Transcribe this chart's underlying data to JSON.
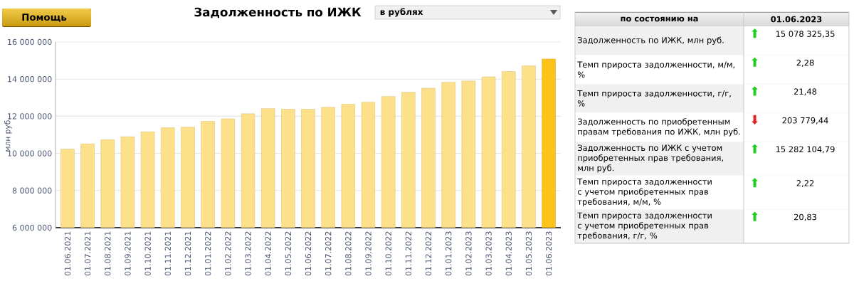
{
  "chart_data": [
    {
      "type": "bar",
      "title": "Задолженность по ИЖК",
      "ylabel": "млн руб.",
      "annotations": [
        "Помощь",
        "в рублях"
      ],
      "categories": [
        "01.06.2021",
        "01.07.2021",
        "01.08.2021",
        "01.09.2021",
        "01.10.2021",
        "01.11.2021",
        "01.12.2021",
        "01.01.2022",
        "01.02.2022",
        "01.03.2022",
        "01.04.2022",
        "01.05.2022",
        "01.06.2022",
        "01.07.2022",
        "01.08.2022",
        "01.09.2022",
        "01.10.2022",
        "01.11.2022",
        "01.12.2022",
        "01.01.2023",
        "01.02.2023",
        "01.03.2023",
        "01.04.2023",
        "01.05.2023",
        "01.06.2023"
      ],
      "values": [
        10230000,
        10510000,
        10740000,
        10900000,
        11170000,
        11380000,
        11410000,
        11730000,
        11860000,
        12140000,
        12410000,
        12380000,
        12380000,
        12480000,
        12650000,
        12760000,
        13070000,
        13290000,
        13510000,
        13830000,
        13900000,
        14120000,
        14410000,
        14720000,
        15080000
      ],
      "colors": [
        "#fde08a",
        "#fde08a",
        "#fde08a",
        "#fde08a",
        "#fde08a",
        "#fde08a",
        "#fde08a",
        "#fde08a",
        "#fde08a",
        "#fde08a",
        "#fde08a",
        "#fde08a",
        "#fde08a",
        "#fde08a",
        "#fde08a",
        "#fde08a",
        "#fde08a",
        "#fde08a",
        "#fde08a",
        "#fde08a",
        "#fde08a",
        "#fde08a",
        "#fde08a",
        "#fde08a",
        "#fcc419"
      ],
      "ylim": [
        6000000,
        16000000
      ],
      "yticks": [
        {
          "value": 6000000,
          "label": "6 000 000"
        },
        {
          "value": 8000000,
          "label": "8 000 000"
        },
        {
          "value": 10000000,
          "label": "10 000 000"
        },
        {
          "value": 12000000,
          "label": "12 000 000"
        },
        {
          "value": 14000000,
          "label": "14 000 000"
        },
        {
          "value": 16000000,
          "label": "16 000 000"
        }
      ],
      "grid": "y"
    },
    {
      "type": "other",
      "title": "по состоянию на",
      "subtitle": "01.06.2023",
      "annotations": [
        "Задолженность по ИЖК, млн руб.",
        "Темп прироста задолженности, м/м, %",
        "Темп прироста задолженности, г/г, %",
        "Задолженность по приобретенным правам требования по ИЖК, млн руб.",
        "Задолженность по ИЖК с учетом приобретенных прав требования, млн руб.",
        "Темп прироста задолженности с учетом приобретенных прав требования, м/м, %",
        "Темп прироста задолженности с учетом приобретенных прав требования, г/г, %"
      ],
      "value_labels": [
        "15 078 325,35",
        "2,28",
        "21,48",
        "203 779,44",
        "15 282 104,79",
        "2,22",
        "20,83"
      ],
      "categories": [
        "⬆",
        "⬆",
        "⬆",
        "⬇",
        "⬆",
        "⬆",
        "⬆"
      ],
      "colors": [
        "#22cc22",
        "#22cc22",
        "#22cc22",
        "#e02020",
        "#22cc22",
        "#22cc22",
        "#22cc22"
      ]
    }
  ]
}
